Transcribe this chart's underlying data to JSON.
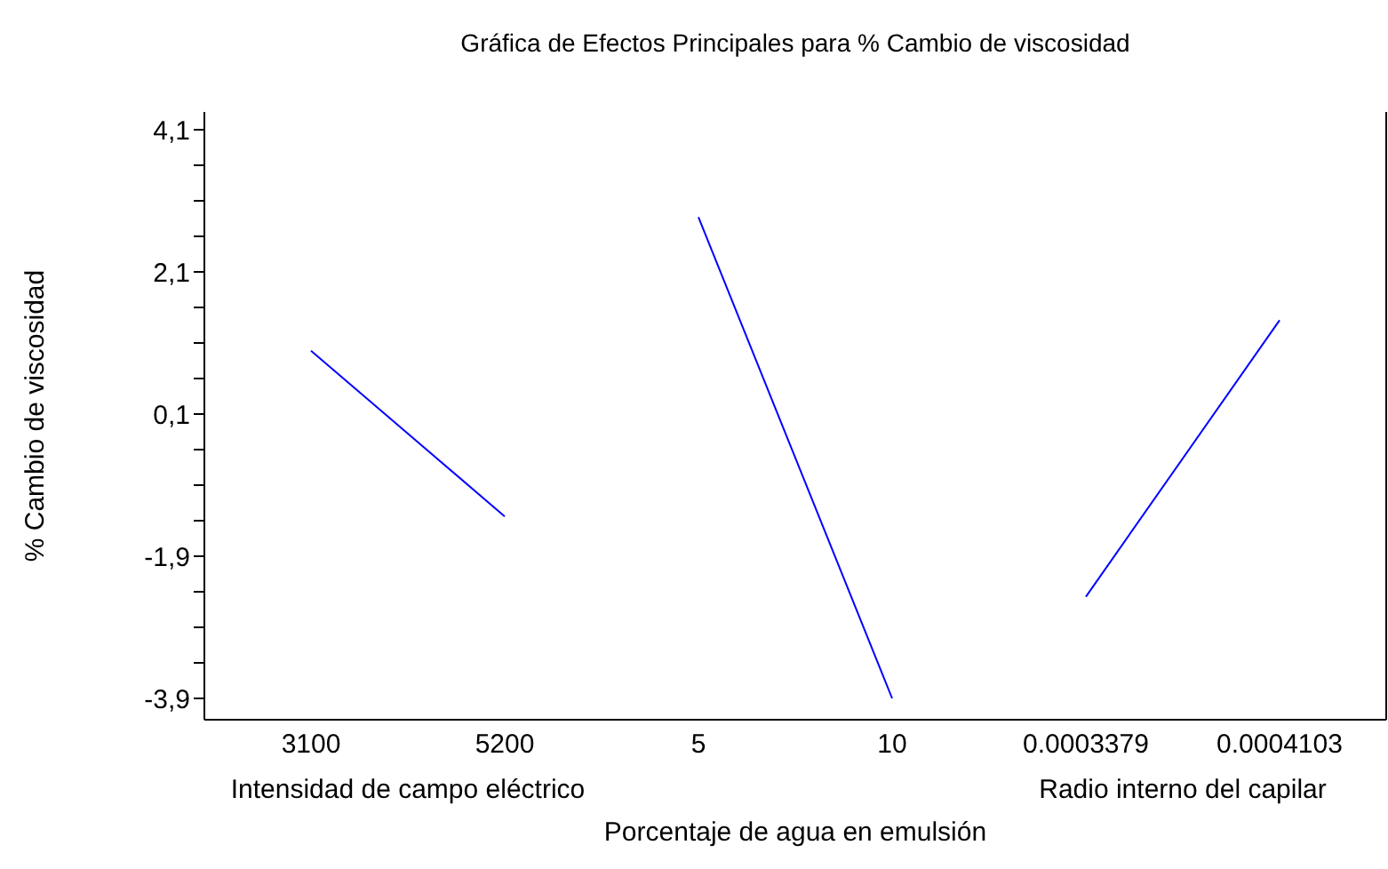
{
  "chart_data": {
    "type": "line",
    "title": "Gráfica de Efectos Principales para % Cambio de viscosidad",
    "ylabel": "% Cambio de viscosidad",
    "xlabel": "Porcentaje de agua en emulsión",
    "annotations": [
      "Intensidad de campo eléctrico",
      "Radio interno del capilar"
    ],
    "categories": [
      "3100",
      "5200",
      "5",
      "10",
      "0.0003379",
      "0.0004103"
    ],
    "series": [
      {
        "color": "#0000ff",
        "values": [
          0.99,
          -1.34,
          null,
          null,
          null,
          null
        ]
      },
      {
        "color": "#0000ff",
        "values": [
          null,
          null,
          2.87,
          -3.9,
          null,
          null
        ]
      },
      {
        "color": "#0000ff",
        "values": [
          null,
          null,
          null,
          null,
          -2.47,
          1.42
        ]
      }
    ],
    "ylim": [
      -4.2,
      4.35
    ],
    "yticks": [
      {
        "value": -3.9,
        "label": "-3,9"
      },
      {
        "value": -3.4,
        "label": null
      },
      {
        "value": -2.9,
        "label": null
      },
      {
        "value": -2.4,
        "label": null
      },
      {
        "value": -1.9,
        "label": "-1,9"
      },
      {
        "value": -1.4,
        "label": null
      },
      {
        "value": -0.9,
        "label": null
      },
      {
        "value": -0.4,
        "label": null
      },
      {
        "value": 0.1,
        "label": "0,1"
      },
      {
        "value": 0.6,
        "label": null
      },
      {
        "value": 1.1,
        "label": null
      },
      {
        "value": 1.6,
        "label": null
      },
      {
        "value": 2.1,
        "label": "2,1"
      },
      {
        "value": 2.6,
        "label": null
      },
      {
        "value": 3.1,
        "label": null
      },
      {
        "value": 3.6,
        "label": null
      },
      {
        "value": 4.1,
        "label": "4,1"
      }
    ],
    "marker": "none",
    "line_style": "solid"
  }
}
